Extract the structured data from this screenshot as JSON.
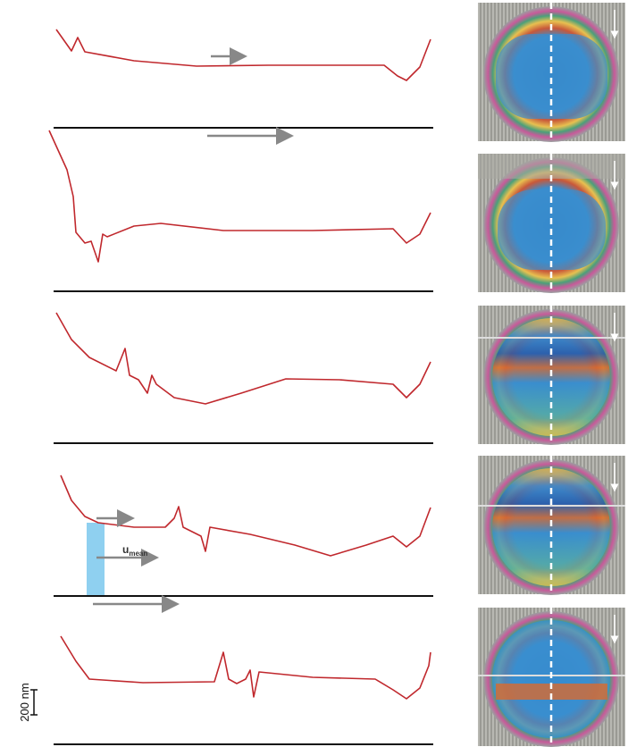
{
  "annotations": {
    "velocity_label": {
      "main": "u",
      "subscript": "mean"
    }
  },
  "scale_bar": {
    "label": "200 nm"
  }
}
